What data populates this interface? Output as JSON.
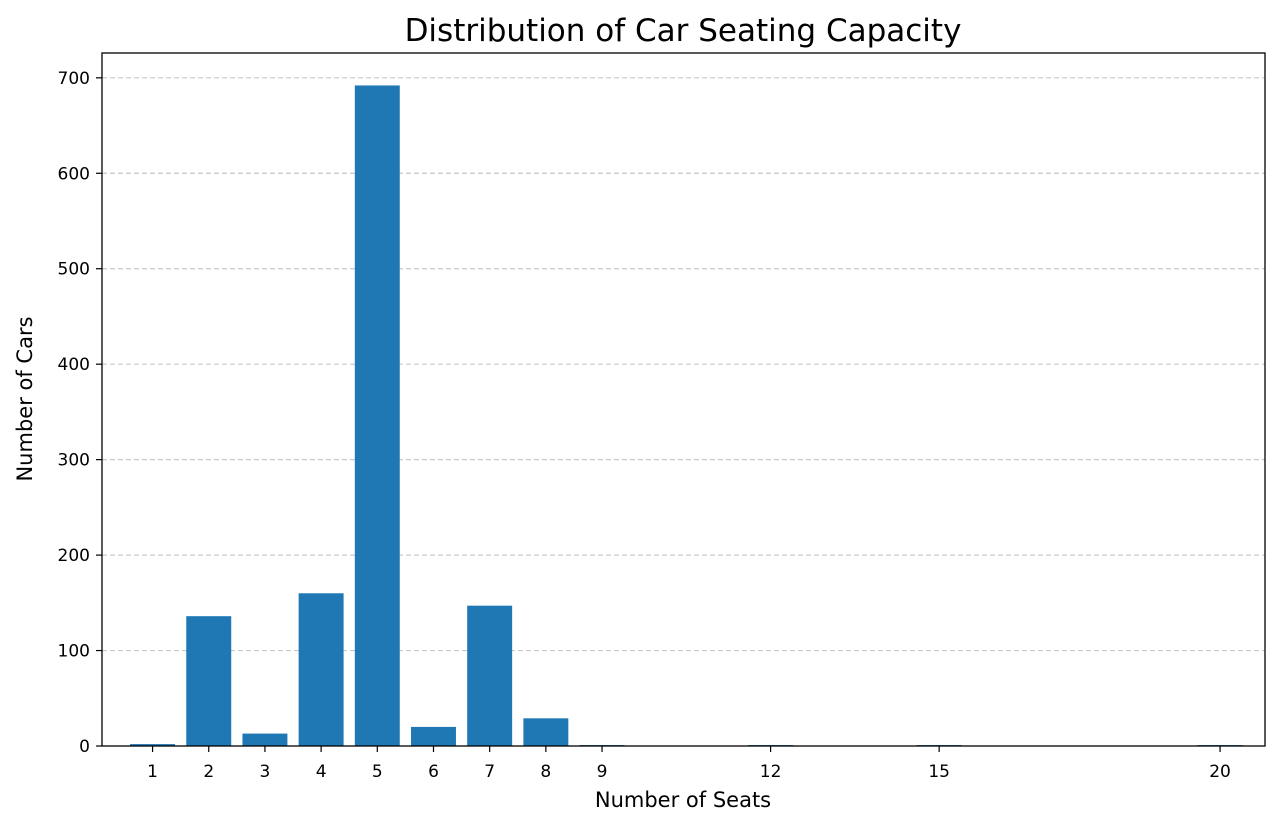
{
  "chart_data": {
    "type": "bar",
    "title": "Distribution of Car Seating Capacity",
    "xlabel": "Number of Seats",
    "ylabel": "Number of Cars",
    "x": [
      1,
      2,
      3,
      4,
      5,
      6,
      7,
      8,
      9,
      12,
      15,
      20
    ],
    "values": [
      2,
      136,
      13,
      160,
      692,
      20,
      147,
      29,
      1,
      1,
      1,
      1
    ],
    "x_ticks": [
      "1",
      "2",
      "3",
      "4",
      "5",
      "6",
      "7",
      "8",
      "9",
      "12",
      "15",
      "20"
    ],
    "y_ticks": [
      "0",
      "100",
      "200",
      "300",
      "400",
      "500",
      "600",
      "700"
    ],
    "xlim": [
      0.1,
      20.8
    ],
    "ylim": [
      0,
      726
    ],
    "grid": "y-dashed",
    "colors": {
      "bar": "#1f77b4",
      "grid": "#c8c8c8",
      "axis": "#000000"
    }
  }
}
